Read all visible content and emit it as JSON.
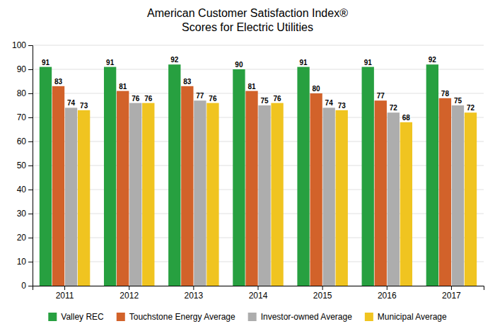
{
  "chart_data": {
    "type": "bar",
    "title": "American Customer Satisfaction Index®",
    "subtitle": "Scores for Electric Utilities",
    "categories": [
      "2011",
      "2012",
      "2013",
      "2014",
      "2015",
      "2016",
      "2017"
    ],
    "series": [
      {
        "name": "Valley REC",
        "color": "#27A040",
        "values": [
          91,
          91,
          92,
          90,
          91,
          91,
          92
        ]
      },
      {
        "name": "Touchstone Energy Average",
        "color": "#D2622A",
        "values": [
          83,
          81,
          83,
          81,
          80,
          77,
          78
        ]
      },
      {
        "name": "Investor-owned Average",
        "color": "#ADADAD",
        "values": [
          74,
          76,
          77,
          75,
          74,
          72,
          75
        ]
      },
      {
        "name": "Municipal Average",
        "color": "#F0C420",
        "values": [
          73,
          76,
          76,
          76,
          73,
          68,
          72
        ]
      }
    ],
    "ylim": [
      0,
      100
    ],
    "yticks": [
      0,
      10,
      20,
      30,
      40,
      50,
      60,
      70,
      80,
      90,
      100
    ],
    "grid": true,
    "data_labels": true,
    "legend": "bottom"
  }
}
